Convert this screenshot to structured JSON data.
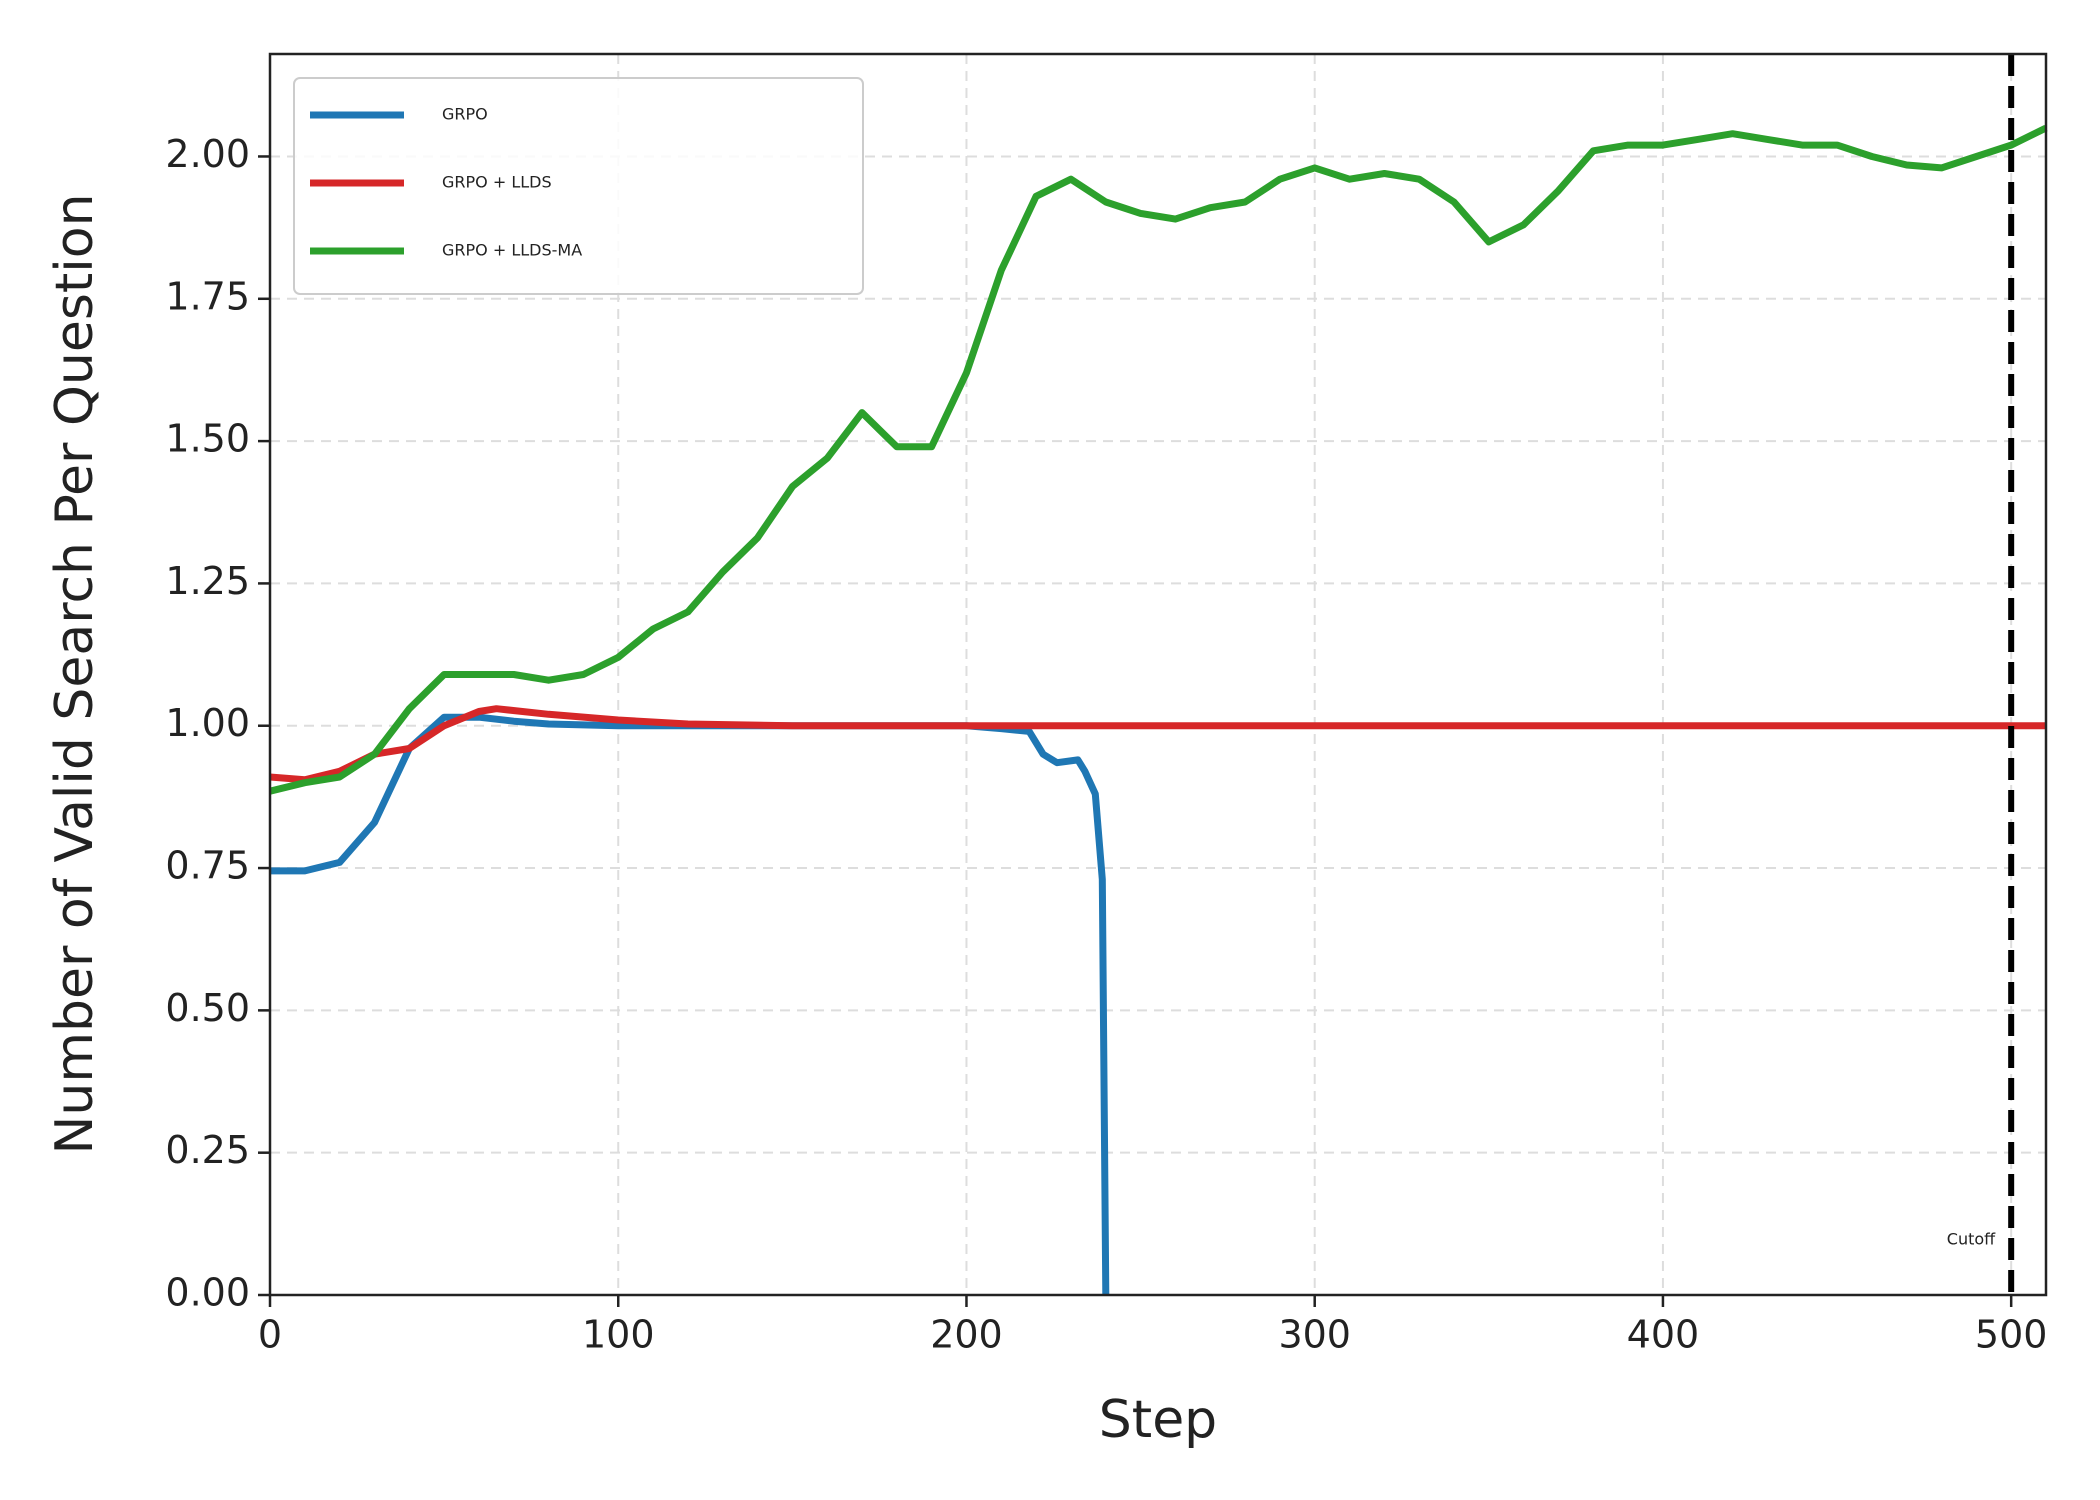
{
  "chart_data": {
    "type": "line",
    "xlabel": "Step",
    "ylabel": "Number of Valid Search Per Question",
    "xlim": [
      0,
      510
    ],
    "ylim": [
      0,
      2.18
    ],
    "xticks": [
      0,
      100,
      200,
      300,
      400,
      500
    ],
    "yticks": [
      {
        "value": 0,
        "label": "0.00"
      },
      0.25,
      {
        "value": 0.5,
        "label": "0.50"
      },
      0.75,
      {
        "value": 1,
        "label": "1.00"
      },
      1.25,
      {
        "value": 1.5,
        "label": "1.50"
      },
      1.75,
      {
        "value": 2,
        "label": "2.00"
      }
    ],
    "grid": true,
    "legend": "upper left",
    "cutoff": {
      "x": 500,
      "label": "Cutoff",
      "color": "#000000"
    },
    "series": [
      {
        "name": "GRPO",
        "color": "#1f77b4",
        "x": [
          0,
          10,
          20,
          30,
          40,
          50,
          60,
          70,
          80,
          100,
          150,
          200,
          210,
          218,
          222,
          226,
          232,
          234,
          237,
          239,
          240
        ],
        "values": [
          0.745,
          0.745,
          0.76,
          0.83,
          0.96,
          1.015,
          1.015,
          1.008,
          1.003,
          1.0,
          1.0,
          1.0,
          0.995,
          0.99,
          0.95,
          0.935,
          0.94,
          0.92,
          0.88,
          0.73,
          0.0
        ]
      },
      {
        "name": "GRPO + LLDS",
        "color": "#d62728",
        "x": [
          0,
          10,
          20,
          30,
          40,
          50,
          60,
          65,
          80,
          100,
          120,
          150,
          510
        ],
        "values": [
          0.91,
          0.905,
          0.92,
          0.95,
          0.96,
          1.0,
          1.025,
          1.03,
          1.02,
          1.01,
          1.003,
          1.0,
          1.0
        ]
      },
      {
        "name": "GRPO + LLDS-MA",
        "color": "#2ca02c",
        "x": [
          0,
          10,
          20,
          30,
          40,
          50,
          60,
          70,
          80,
          90,
          100,
          110,
          120,
          130,
          140,
          150,
          160,
          170,
          175,
          180,
          190,
          200,
          210,
          220,
          230,
          240,
          250,
          260,
          270,
          280,
          290,
          300,
          310,
          320,
          330,
          340,
          350,
          360,
          370,
          380,
          390,
          400,
          410,
          420,
          430,
          440,
          450,
          460,
          470,
          480,
          490,
          500,
          510
        ],
        "values": [
          0.885,
          0.9,
          0.91,
          0.95,
          1.03,
          1.09,
          1.09,
          1.09,
          1.08,
          1.09,
          1.12,
          1.17,
          1.2,
          1.27,
          1.33,
          1.42,
          1.47,
          1.55,
          1.52,
          1.49,
          1.49,
          1.62,
          1.8,
          1.93,
          1.96,
          1.92,
          1.9,
          1.89,
          1.91,
          1.92,
          1.96,
          1.98,
          1.96,
          1.97,
          1.96,
          1.92,
          1.85,
          1.88,
          1.94,
          2.01,
          2.02,
          2.02,
          2.03,
          2.04,
          2.03,
          2.02,
          2.02,
          2.0,
          1.985,
          1.98,
          2.0,
          2.02,
          2.05
        ]
      }
    ]
  }
}
